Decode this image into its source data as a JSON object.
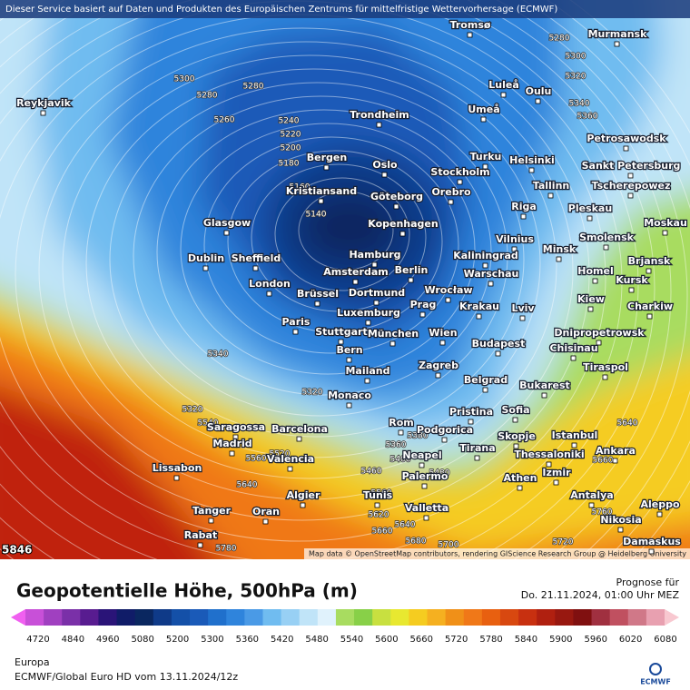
{
  "header": {
    "notice": "Dieser Service basiert auf Daten und Produkten des Europäischen Zentrums für mittelfristige Wettervorhersage (ECMWF)"
  },
  "map": {
    "attribution": "Map data © OpenStreetMap contributors, rendering GIScience Research Group @ Heidelberg University",
    "corner_value": 5846,
    "cities": [
      "Tromsø",
      "Murmansk",
      "Luleå",
      "Oulu",
      "Reykjavik",
      "Trondheim",
      "Umeå",
      "Petrosawodsk",
      "Bergen",
      "Oslo",
      "Turku",
      "Helsinki",
      "Sankt Petersburg",
      "Stockholm",
      "Kristiansand",
      "Göteborg",
      "Orebro",
      "Tallinn",
      "Tscherepowez",
      "Glasgow",
      "Kopenhagen",
      "Riga",
      "Pleskau",
      "Moskau",
      "Vilnius",
      "Smolensk",
      "Dublin",
      "Sheffield",
      "Hamburg",
      "Kaliningrad",
      "Minsk",
      "Brjansk",
      "Amsterdam",
      "Berlin",
      "Warschau",
      "Homel",
      "Kursk",
      "London",
      "Brüssel",
      "Dortmund",
      "Wrocław",
      "Krakau",
      "Prag",
      "Kiew",
      "Charkiw",
      "Paris",
      "Luxemburg",
      "Lviv",
      "Stuttgart",
      "München",
      "Wien",
      "Dnipropetrowsk",
      "Budapest",
      "Chisinau",
      "Bern",
      "Zagreb",
      "Tiraspol",
      "Mailand",
      "Belgrad",
      "Bukarest",
      "Monaco",
      "Pristina",
      "Sofia",
      "Saragossa",
      "Barcelona",
      "Rom",
      "Podgorica",
      "Skopje",
      "Istanbul",
      "Madrid",
      "Tirana",
      "Thessaloniki",
      "Ankara",
      "Valencia",
      "Neapel",
      "Lissabon",
      "Izmir",
      "Athen",
      "Palermo",
      "Antalya",
      "Algier",
      "Tunis",
      "Valletta",
      "Aleppo",
      "Tanger",
      "Oran",
      "Nikosia",
      "Rabat",
      "Damaskus"
    ],
    "contour_labels": [
      5300,
      5280,
      5280,
      5260,
      5240,
      5220,
      5200,
      5180,
      5160,
      5140,
      5340,
      5320,
      5320,
      5540,
      5560,
      5640,
      5780,
      5520,
      5460,
      5560,
      5620,
      5640,
      5660,
      5680,
      5700,
      5720,
      5280,
      5300,
      5320,
      5340,
      5360,
      5640,
      5660,
      5760,
      5480,
      5400,
      5360,
      5380
    ]
  },
  "legend": {
    "title": "Geopotentielle Höhe, 500hPa (m)",
    "forecast_label": "Prognose für",
    "forecast_time": "Do. 21.11.2024, 01:00 Uhr MEZ",
    "ticks": [
      4720,
      4840,
      4960,
      5080,
      5200,
      5300,
      5360,
      5420,
      5480,
      5540,
      5600,
      5660,
      5720,
      5780,
      5840,
      5900,
      5960,
      6020,
      6080
    ],
    "colors": [
      "#f060f0",
      "#c850d8",
      "#a040c0",
      "#7a30a8",
      "#581c90",
      "#2a1478",
      "#101c68",
      "#0a2760",
      "#0f3a88",
      "#1450a8",
      "#1a5ab8",
      "#2070cc",
      "#2f84dc",
      "#4a9ae6",
      "#70bcf0",
      "#98d0f4",
      "#c0e4f8",
      "#e0f2fc",
      "#a8dc60",
      "#88d048",
      "#c8e040",
      "#e8e830",
      "#f5cc20",
      "#f5b020",
      "#f09018",
      "#f07818",
      "#e86010",
      "#d84810",
      "#c83010",
      "#b02010",
      "#981810",
      "#801010",
      "#a03040",
      "#c05060",
      "#d07888",
      "#e8a0b0",
      "#f8c8d0"
    ]
  },
  "footer": {
    "region": "Europa",
    "source": "ECMWF/Global Euro HD vom  13.11.2024/12z",
    "logo": "ECMWF"
  }
}
